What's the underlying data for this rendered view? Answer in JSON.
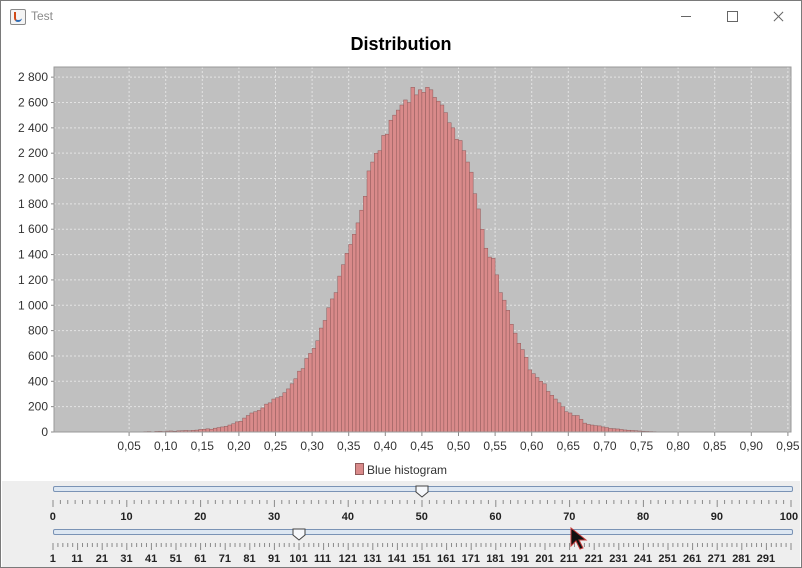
{
  "window": {
    "title": "Test"
  },
  "chart_data": {
    "type": "bar",
    "title": "Distribution",
    "xlabel": "",
    "ylabel": "",
    "legend": "Blue histogram",
    "legend_placement": "bottom",
    "grid": true,
    "colors": {
      "bar": "#d98a8a",
      "bar_edge": "#8f5a5a",
      "plot_bg": "#c0c0c0",
      "grid": "#e3e3e3"
    },
    "xlim": [
      0.0,
      1.0
    ],
    "ylim": [
      0,
      2800
    ],
    "bin_width": 0.005,
    "bin_start": 0.0,
    "x_ticks": [
      "0,05",
      "0,10",
      "0,15",
      "0,20",
      "0,25",
      "0,30",
      "0,35",
      "0,40",
      "0,45",
      "0,50",
      "0,55",
      "0,60",
      "0,65",
      "0,70",
      "0,75",
      "0,80",
      "0,85",
      "0,90",
      "0,95"
    ],
    "y_ticks": [
      "0",
      "200",
      "400",
      "600",
      "800",
      "1 000",
      "1 200",
      "1 400",
      "1 600",
      "1 800",
      "2 000",
      "2 200",
      "2 400",
      "2 600",
      "2 800"
    ],
    "values": [
      0,
      0,
      0,
      0,
      0,
      0,
      0,
      0,
      0,
      0,
      0,
      2,
      0,
      0,
      3,
      4,
      0,
      5,
      6,
      4,
      7,
      8,
      6,
      9,
      10,
      12,
      10,
      13,
      15,
      20,
      22,
      25,
      22,
      30,
      35,
      40,
      45,
      55,
      65,
      80,
      85,
      110,
      130,
      150,
      160,
      170,
      190,
      220,
      230,
      260,
      270,
      280,
      310,
      340,
      380,
      420,
      480,
      500,
      580,
      620,
      660,
      720,
      820,
      880,
      980,
      1050,
      1100,
      1230,
      1320,
      1410,
      1480,
      1560,
      1650,
      1750,
      1860,
      2060,
      2130,
      2200,
      2220,
      2340,
      2350,
      2460,
      2500,
      2540,
      2580,
      2620,
      2600,
      2720,
      2660,
      2700,
      2680,
      2720,
      2700,
      2640,
      2610,
      2580,
      2520,
      2440,
      2400,
      2310,
      2300,
      2220,
      2130,
      2050,
      1880,
      1760,
      1600,
      1450,
      1380,
      1370,
      1240,
      1100,
      1040,
      960,
      850,
      780,
      700,
      650,
      590,
      490,
      460,
      430,
      400,
      380,
      320,
      290,
      260,
      230,
      200,
      160,
      150,
      130,
      130,
      100,
      70,
      60,
      55,
      50,
      48,
      40,
      35,
      28,
      26,
      24,
      20,
      16,
      14,
      12,
      10,
      8,
      6,
      5,
      4,
      3,
      2,
      0,
      0,
      0,
      0,
      0,
      0,
      0,
      0,
      0,
      0,
      0,
      0,
      0,
      0,
      0,
      0,
      0,
      0,
      0,
      0,
      0,
      0,
      0,
      0,
      0,
      0,
      0,
      0,
      0,
      0,
      0,
      0,
      0,
      0,
      0,
      0,
      0,
      0,
      0,
      0,
      0,
      0,
      0,
      0
    ]
  },
  "sliders": [
    {
      "name": "slider-1",
      "value": 50,
      "min": 0,
      "max": 100,
      "labels": [
        "0",
        "10",
        "20",
        "30",
        "40",
        "50",
        "60",
        "70",
        "80",
        "90",
        "100"
      ]
    },
    {
      "name": "slider-2",
      "value": 101,
      "min": 1,
      "max": 301,
      "labels": [
        "1",
        "11",
        "21",
        "31",
        "41",
        "51",
        "61",
        "71",
        "81",
        "91",
        "101",
        "111",
        "121",
        "131",
        "141",
        "151",
        "161",
        "171",
        "181",
        "191",
        "201",
        "211",
        "221",
        "231",
        "241",
        "251",
        "261",
        "271",
        "281",
        "291"
      ]
    }
  ],
  "icons": {
    "app": "java-app-icon",
    "cursor": "mouse-pointer-icon"
  }
}
